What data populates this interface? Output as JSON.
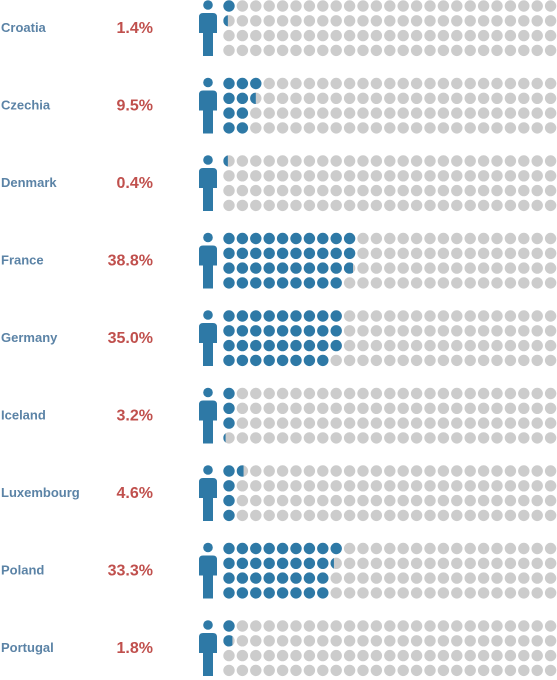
{
  "chart_data": {
    "type": "waffle",
    "grid": {
      "rows": 4,
      "cols": 25,
      "units": 100
    },
    "colors": {
      "filled": "#2e79a6",
      "empty": "#cccccc",
      "country_label": "#5b83a6",
      "value_label": "#c0504d",
      "person_icon": "#2e79a6"
    },
    "icon": "person-icon",
    "rows": [
      {
        "country": "Croatia",
        "value": 1.4,
        "label": "1.4%"
      },
      {
        "country": "Czechia",
        "value": 9.5,
        "label": "9.5%"
      },
      {
        "country": "Denmark",
        "value": 0.4,
        "label": "0.4%"
      },
      {
        "country": "France",
        "value": 38.8,
        "label": "38.8%"
      },
      {
        "country": "Germany",
        "value": 35.0,
        "label": "35.0%"
      },
      {
        "country": "Iceland",
        "value": 3.2,
        "label": "3.2%"
      },
      {
        "country": "Luxembourg",
        "value": 4.6,
        "label": "4.6%"
      },
      {
        "country": "Poland",
        "value": 33.3,
        "label": "33.3%"
      },
      {
        "country": "Portugal",
        "value": 1.8,
        "label": "1.8%"
      }
    ]
  }
}
